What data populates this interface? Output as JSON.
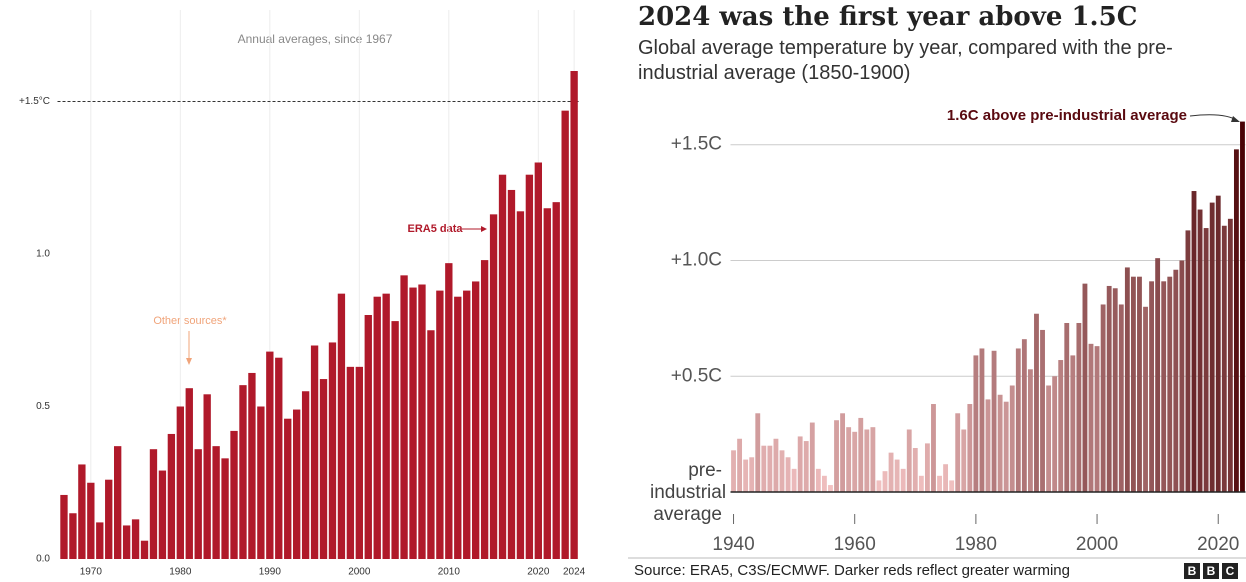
{
  "chart_data": [
    {
      "type": "bar",
      "subtitle": "Annual averages, since 1967",
      "annotations": [
        "ERA5 data",
        "Other sources*"
      ],
      "x": [
        1967,
        1968,
        1969,
        1970,
        1971,
        1972,
        1973,
        1974,
        1975,
        1976,
        1977,
        1978,
        1979,
        1980,
        1981,
        1982,
        1983,
        1984,
        1985,
        1986,
        1987,
        1988,
        1989,
        1990,
        1991,
        1992,
        1993,
        1994,
        1995,
        1996,
        1997,
        1998,
        1999,
        2000,
        2001,
        2002,
        2003,
        2004,
        2005,
        2006,
        2007,
        2008,
        2009,
        2010,
        2011,
        2012,
        2013,
        2014,
        2015,
        2016,
        2017,
        2018,
        2019,
        2020,
        2021,
        2022,
        2023,
        2024
      ],
      "values": [
        0.21,
        0.15,
        0.31,
        0.25,
        0.12,
        0.26,
        0.37,
        0.11,
        0.13,
        0.06,
        0.36,
        0.29,
        0.41,
        0.5,
        0.56,
        0.36,
        0.54,
        0.37,
        0.33,
        0.42,
        0.57,
        0.61,
        0.5,
        0.68,
        0.66,
        0.46,
        0.49,
        0.55,
        0.7,
        0.59,
        0.71,
        0.87,
        0.63,
        0.63,
        0.8,
        0.86,
        0.87,
        0.78,
        0.93,
        0.89,
        0.9,
        0.75,
        0.88,
        0.97,
        0.86,
        0.88,
        0.91,
        0.98,
        1.13,
        1.26,
        1.21,
        1.14,
        1.26,
        1.3,
        1.15,
        1.17,
        1.47,
        1.6
      ],
      "color": "#b0192a",
      "xlim": [
        1966.5,
        2024.5
      ],
      "xticks": [
        1970,
        1980,
        1990,
        2000,
        2010,
        2020,
        2024
      ],
      "ylim": [
        0,
        1.8
      ],
      "yticks": [
        {
          "value": 0,
          "label": "0.0"
        },
        0.5,
        {
          "value": 1,
          "label": "1.0"
        },
        {
          "value": 1.5,
          "label": "+1.5°C"
        }
      ],
      "hline": 1.5
    },
    {
      "type": "bar",
      "title": "2024 was the first year above 1.5C",
      "subtitle": "Global average temperature by year, compared with the pre-industrial average (1850-1900)",
      "annotation": "1.6C above pre-industrial average",
      "source": "Source: ERA5, C3S/ECMWF. Darker reds reflect greater warming",
      "x": [
        1940,
        1941,
        1942,
        1943,
        1944,
        1945,
        1946,
        1947,
        1948,
        1949,
        1950,
        1951,
        1952,
        1953,
        1954,
        1955,
        1956,
        1957,
        1958,
        1959,
        1960,
        1961,
        1962,
        1963,
        1964,
        1965,
        1966,
        1967,
        1968,
        1969,
        1970,
        1971,
        1972,
        1973,
        1974,
        1975,
        1976,
        1977,
        1978,
        1979,
        1980,
        1981,
        1982,
        1983,
        1984,
        1985,
        1986,
        1987,
        1988,
        1989,
        1990,
        1991,
        1992,
        1993,
        1994,
        1995,
        1996,
        1997,
        1998,
        1999,
        2000,
        2001,
        2002,
        2003,
        2004,
        2005,
        2006,
        2007,
        2008,
        2009,
        2010,
        2011,
        2012,
        2013,
        2014,
        2015,
        2016,
        2017,
        2018,
        2019,
        2020,
        2021,
        2022,
        2023,
        2024
      ],
      "values": [
        0.18,
        0.23,
        0.14,
        0.15,
        0.34,
        0.2,
        0.2,
        0.23,
        0.18,
        0.15,
        0.1,
        0.24,
        0.22,
        0.3,
        0.1,
        0.07,
        0.03,
        0.31,
        0.34,
        0.28,
        0.26,
        0.32,
        0.27,
        0.28,
        0.05,
        0.09,
        0.17,
        0.14,
        0.1,
        0.27,
        0.19,
        0.07,
        0.21,
        0.38,
        0.07,
        0.12,
        0.05,
        0.34,
        0.27,
        0.38,
        0.59,
        0.62,
        0.4,
        0.61,
        0.42,
        0.39,
        0.46,
        0.62,
        0.66,
        0.53,
        0.77,
        0.7,
        0.46,
        0.5,
        0.57,
        0.73,
        0.59,
        0.73,
        0.9,
        0.64,
        0.63,
        0.81,
        0.89,
        0.88,
        0.81,
        0.97,
        0.93,
        0.93,
        0.8,
        0.91,
        1.01,
        0.91,
        0.93,
        0.96,
        1.0,
        1.13,
        1.3,
        1.22,
        1.14,
        1.25,
        1.28,
        1.15,
        1.18,
        1.48,
        1.6
      ],
      "color_range": [
        "#f2c2c2",
        "#4a0306"
      ],
      "xlim": [
        1939.5,
        2024.5
      ],
      "xticks": [
        1940,
        1960,
        1980,
        2000,
        2020
      ],
      "ylim": [
        0,
        1.65
      ],
      "yticks": [
        {
          "value": 0,
          "label": "pre-industrial average"
        },
        {
          "value": 0.5,
          "label": "+0.5C"
        },
        {
          "value": 1,
          "label": "+1.0C"
        },
        {
          "value": 1.5,
          "label": "+1.5C"
        }
      ],
      "grid": true
    }
  ]
}
